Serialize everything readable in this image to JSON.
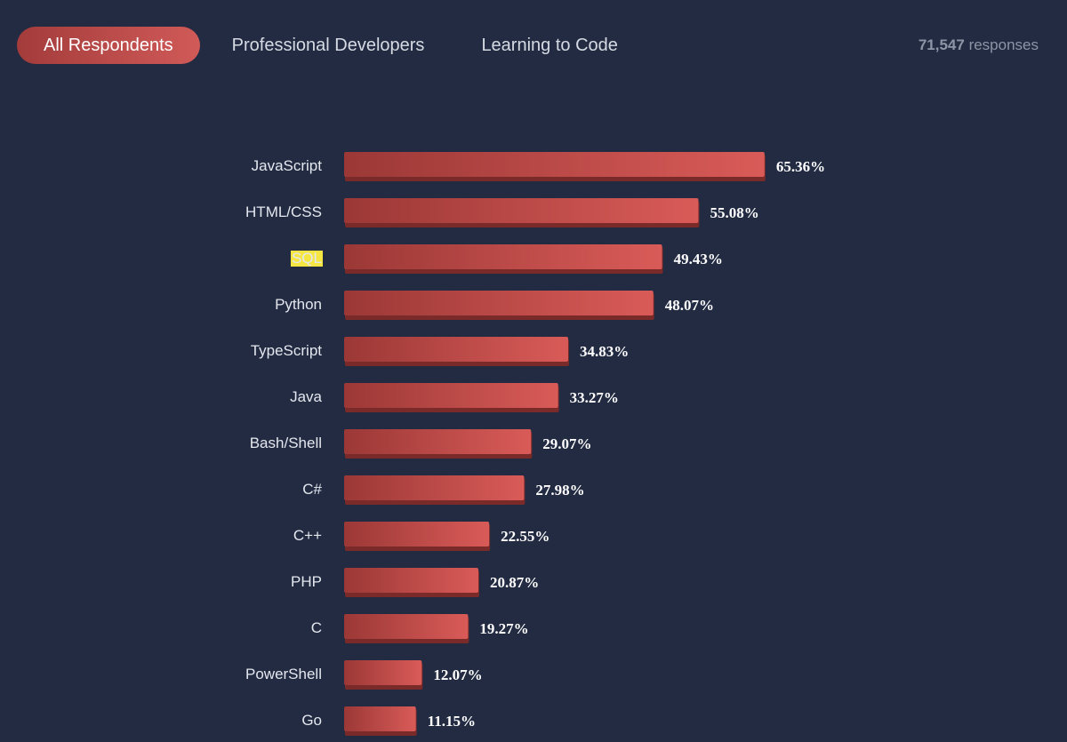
{
  "tabs": [
    {
      "label": "All Respondents",
      "active": true
    },
    {
      "label": "Professional Developers",
      "active": false
    },
    {
      "label": "Learning to Code",
      "active": false
    }
  ],
  "responses": {
    "count": "71,547",
    "suffix": "responses"
  },
  "colors": {
    "background": "#222b42",
    "bar_start": "#9b3836",
    "bar_end": "#d95b58",
    "highlight": "#f5e642"
  },
  "chart_data": {
    "type": "bar",
    "orientation": "horizontal",
    "categories": [
      "JavaScript",
      "HTML/CSS",
      "SQL",
      "Python",
      "TypeScript",
      "Java",
      "Bash/Shell",
      "C#",
      "C++",
      "PHP",
      "C",
      "PowerShell",
      "Go"
    ],
    "values": [
      65.36,
      55.08,
      49.43,
      48.07,
      34.83,
      33.27,
      29.07,
      27.98,
      22.55,
      20.87,
      19.27,
      12.07,
      11.15
    ],
    "value_labels": [
      "65.36%",
      "55.08%",
      "49.43%",
      "48.07%",
      "34.83%",
      "33.27%",
      "29.07%",
      "27.98%",
      "22.55%",
      "20.87%",
      "19.27%",
      "12.07%",
      "11.15%"
    ],
    "highlighted_category": "SQL",
    "grid": false
  }
}
